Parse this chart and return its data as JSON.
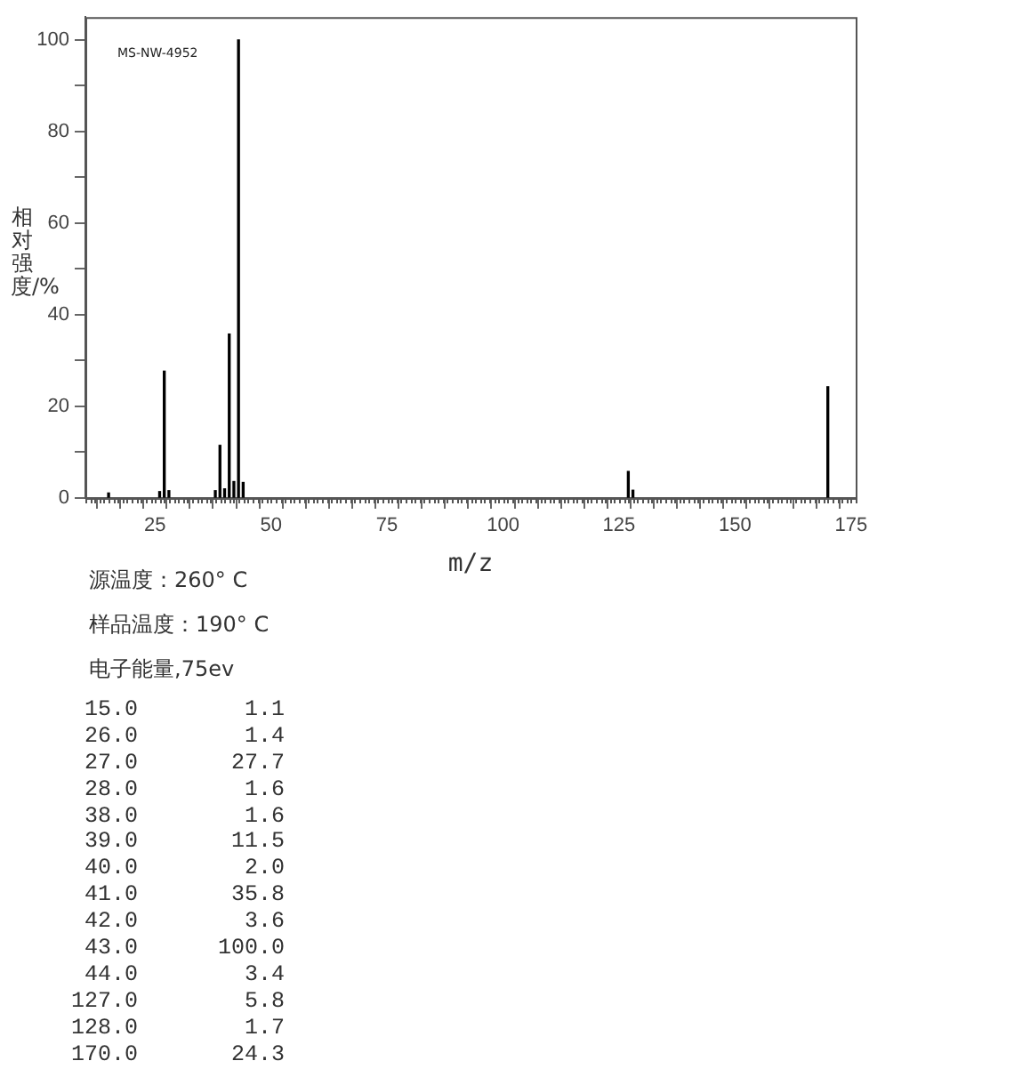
{
  "chart_data": {
    "type": "bar",
    "xlabel": "m/z",
    "ylabel": "相对强度/%",
    "x": [
      15.0,
      26.0,
      27.0,
      28.0,
      38.0,
      39.0,
      40.0,
      41.0,
      42.0,
      43.0,
      44.0,
      127.0,
      128.0,
      170.0
    ],
    "values": [
      1.1,
      1.4,
      27.7,
      1.6,
      1.6,
      11.5,
      2.0,
      35.8,
      3.6,
      100.0,
      3.4,
      5.8,
      1.7,
      24.3
    ],
    "color": "#000000",
    "xlim": [
      10,
      176
    ],
    "xticks": [
      {
        "value": 15,
        "label": null
      },
      {
        "value": 20,
        "label": null
      },
      25,
      {
        "value": 30,
        "label": null
      },
      {
        "value": 35,
        "label": null
      },
      {
        "value": 40,
        "label": null
      },
      {
        "value": 45,
        "label": null
      },
      50,
      {
        "value": 55,
        "label": null
      },
      {
        "value": 60,
        "label": null
      },
      {
        "value": 65,
        "label": null
      },
      {
        "value": 70,
        "label": null
      },
      75,
      {
        "value": 80,
        "label": null
      },
      {
        "value": 85,
        "label": null
      },
      {
        "value": 90,
        "label": null
      },
      {
        "value": 95,
        "label": null
      },
      100,
      {
        "value": 105,
        "label": null
      },
      {
        "value": 110,
        "label": null
      },
      {
        "value": 115,
        "label": null
      },
      {
        "value": 120,
        "label": null
      },
      125,
      {
        "value": 130,
        "label": null
      },
      {
        "value": 135,
        "label": null
      },
      {
        "value": 140,
        "label": null
      },
      {
        "value": 145,
        "label": null
      },
      150,
      {
        "value": 155,
        "label": null
      },
      {
        "value": 160,
        "label": null
      },
      {
        "value": 165,
        "label": null
      },
      {
        "value": 170,
        "label": null
      },
      175
    ],
    "ylim": [
      0,
      105
    ],
    "yticks": [
      0,
      {
        "value": 10,
        "label": null
      },
      20,
      {
        "value": 30,
        "label": null
      },
      40,
      {
        "value": 50,
        "label": null
      },
      60,
      {
        "value": 70,
        "label": null
      },
      80,
      {
        "value": 90,
        "label": null
      },
      100
    ],
    "grid": false,
    "legend": false,
    "annotations": [
      "MS-NW-4952",
      "源温度：260° C",
      "样品温度：190° C",
      "电子能量,75ev",
      " 15.0        1.1",
      " 26.0        1.4",
      " 27.0       27.7",
      " 28.0        1.6",
      " 38.0        1.6",
      " 39.0       11.5",
      " 40.0        2.0",
      " 41.0       35.8",
      " 42.0        3.6",
      " 43.0      100.0",
      " 44.0        3.4",
      "127.0        5.8",
      "128.0        1.7",
      "170.0       24.3"
    ]
  }
}
